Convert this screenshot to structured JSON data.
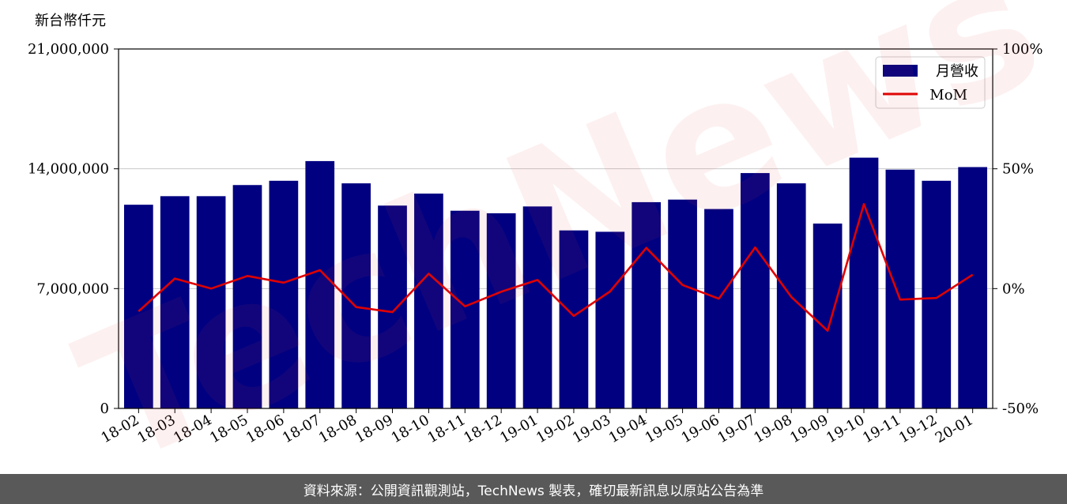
{
  "chart_data": {
    "type": "bar",
    "y_unit_label": "新台幣仟元",
    "categories": [
      "18-02",
      "18-03",
      "18-04",
      "18-05",
      "18-06",
      "18-07",
      "18-08",
      "18-09",
      "18-10",
      "18-11",
      "18-12",
      "19-01",
      "19-02",
      "19-03",
      "19-04",
      "19-05",
      "19-06",
      "19-07",
      "19-08",
      "19-09",
      "19-10",
      "19-11",
      "19-12",
      "20-01"
    ],
    "series": [
      {
        "name": "月營收",
        "axis": "left",
        "color": "#000080",
        "values": [
          11900000,
          12400000,
          12400000,
          13050000,
          13300000,
          14450000,
          13150000,
          11850000,
          12550000,
          11550000,
          11400000,
          11800000,
          10400000,
          10320000,
          12050000,
          12200000,
          11650000,
          13750000,
          13150000,
          10800000,
          14650000,
          13950000,
          13300000,
          14100000
        ]
      },
      {
        "name": "MoM",
        "axis": "right",
        "color": "#e00000",
        "values": [
          -9.5,
          4.2,
          0,
          5.3,
          2.5,
          7.7,
          -7.7,
          -9.8,
          6.2,
          -7.4,
          -1.3,
          3.6,
          -11.4,
          -1.2,
          17,
          1.5,
          -4.2,
          17.2,
          -3.5,
          -17.6,
          35.3,
          -4.6,
          -3.9,
          5.8
        ]
      }
    ],
    "ylim_left": [
      0,
      21000000
    ],
    "yticks_left": [
      0,
      7000000,
      14000000,
      21000000
    ],
    "ytick_labels_left": [
      "0",
      "7,000,000",
      "14,000,000",
      "21,000,000"
    ],
    "ylim_right": [
      -50,
      100
    ],
    "yticks_right": [
      -50,
      0,
      50,
      100
    ],
    "ytick_labels_right": [
      "-50%",
      "0%",
      "50%",
      "100%"
    ],
    "grid": "horizontal",
    "legend_position": "top-right",
    "watermark": "TechNews"
  },
  "footer": {
    "source_text": "資料來源：公開資訊觀測站，TechNews 製表，確切最新訊息以原站公告為準"
  }
}
